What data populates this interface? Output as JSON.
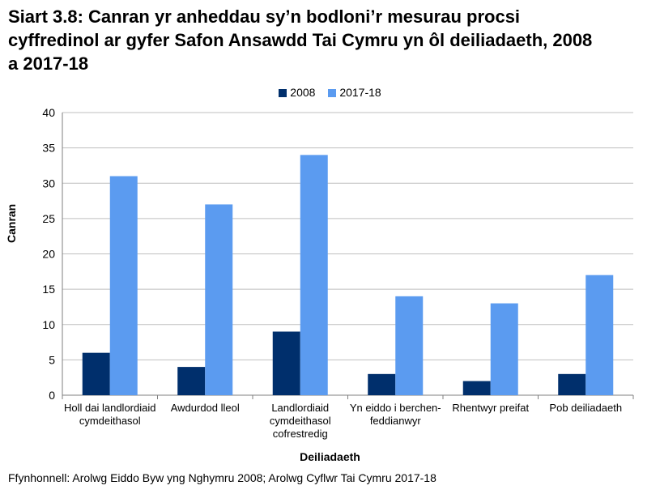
{
  "chart_data": {
    "type": "bar",
    "title_lines": [
      "Siart 3.8: Canran yr anheddau sy’n bodloni’r mesurau procsi",
      "cyffredinol ar gyfer Safon Ansawdd Tai Cymru yn ôl deiliadaeth, 2008",
      "a 2017-18"
    ],
    "categories": [
      [
        "Holl dai landlordiaid",
        "cymdeithasol"
      ],
      [
        "Awdurdod lleol"
      ],
      [
        "Landlordiaid",
        "cymdeithasol",
        "cofrestredig"
      ],
      [
        "Yn eiddo i berchen-",
        "feddianwyr"
      ],
      [
        "Rhentwyr preifat"
      ],
      [
        "Pob deiliadaeth"
      ]
    ],
    "series": [
      {
        "name": "2008",
        "color": "#002f6c",
        "values": [
          6,
          4,
          9,
          3,
          2,
          3
        ]
      },
      {
        "name": "2017-18",
        "color": "#5b9bf0",
        "values": [
          31,
          27,
          34,
          14,
          13,
          17
        ]
      }
    ],
    "xlabel": "Deiliadaeth",
    "ylabel": "Canran",
    "ylim": [
      0,
      40
    ],
    "yticks": [
      "0",
      "5",
      "10",
      "15",
      "20",
      "25",
      "30",
      "35",
      "40"
    ],
    "grid": true,
    "legend_position": "top-center"
  },
  "source": "Ffynhonnell: Arolwg Eiddo Byw yng Nghymru 2008; Arolwg Cyflwr Tai Cymru 2017-18"
}
